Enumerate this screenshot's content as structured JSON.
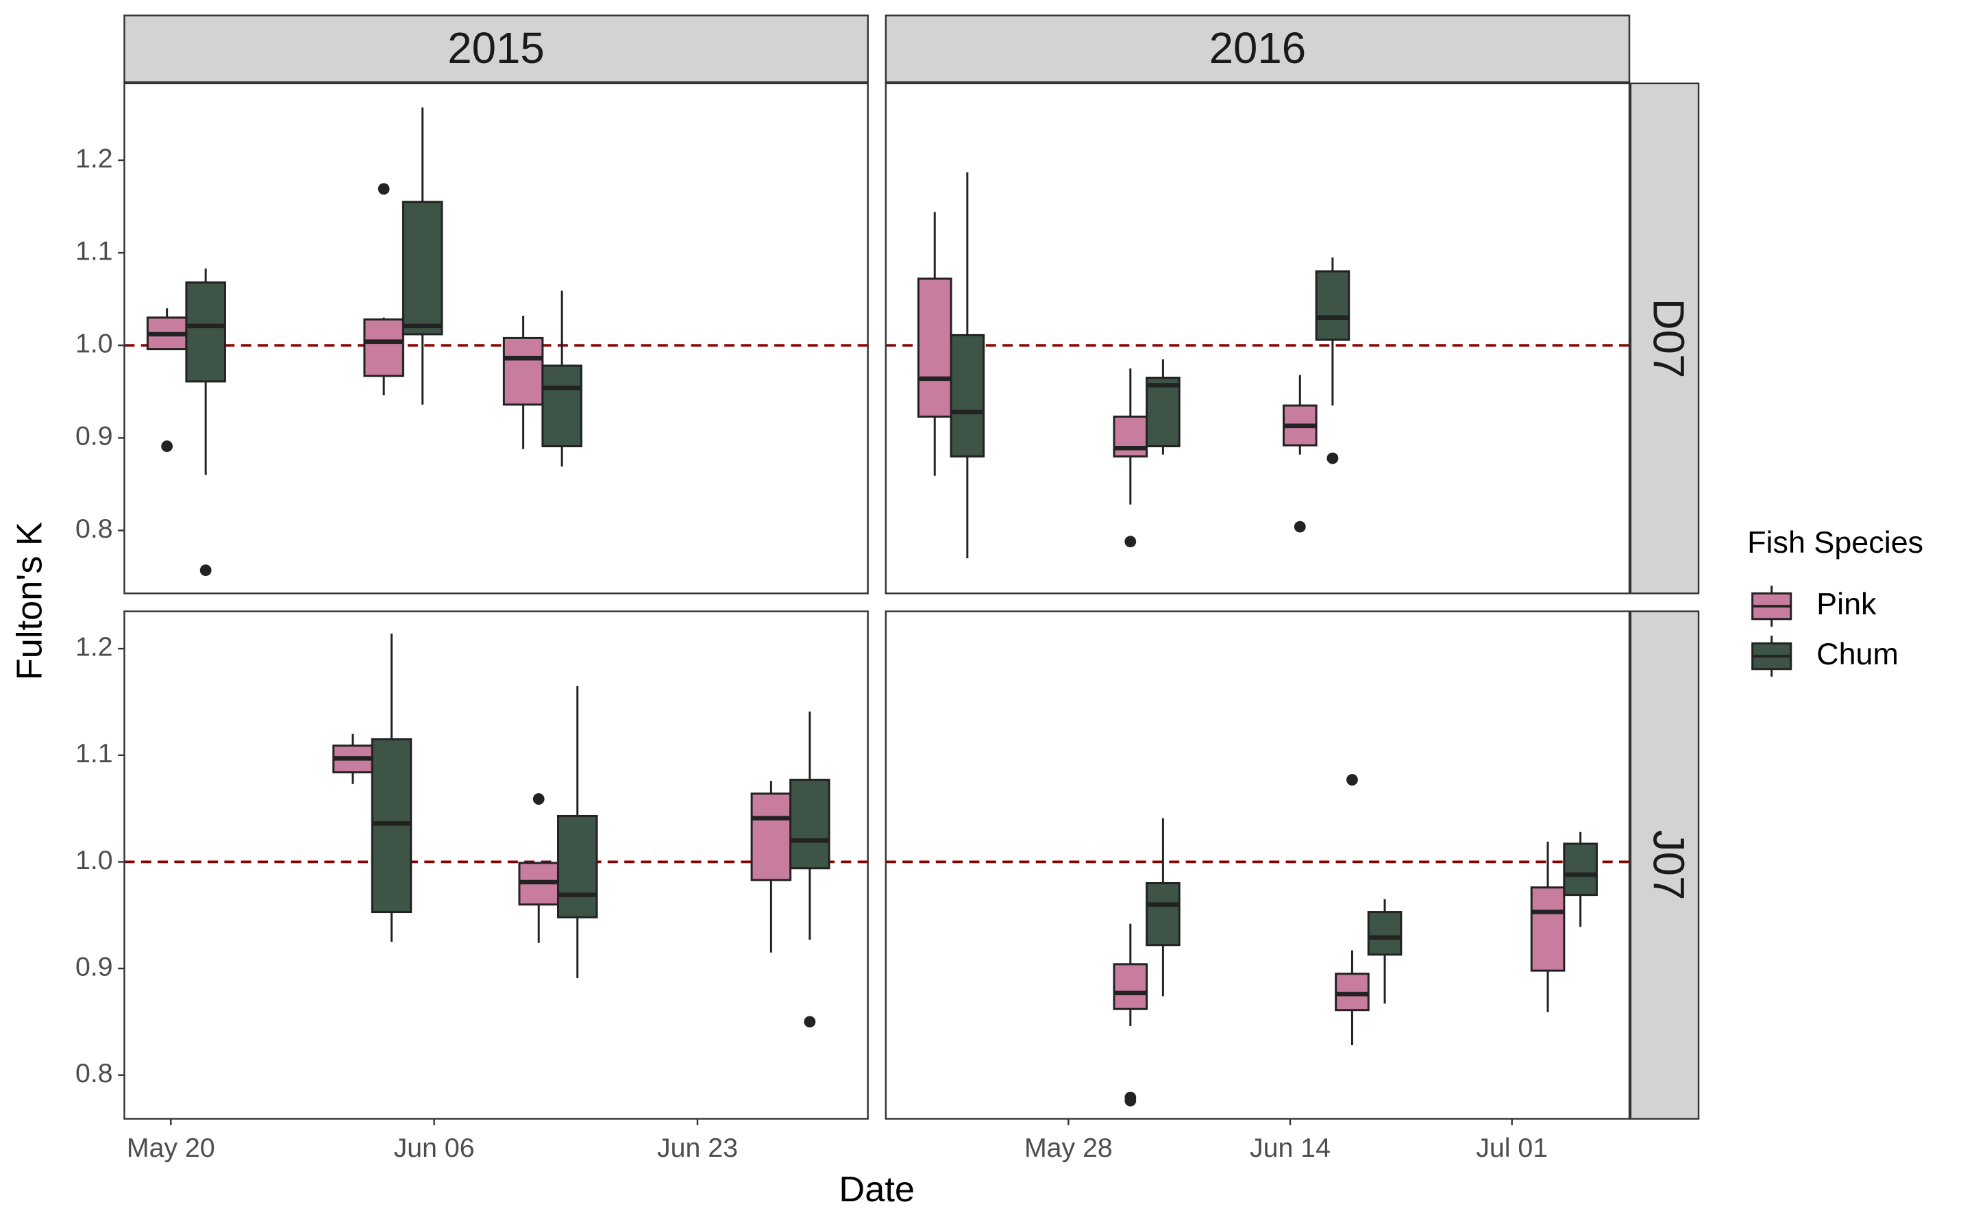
{
  "chart_data": {
    "type": "box",
    "x_label": "Date",
    "y_label": "Fulton's K",
    "legend_title": "Fish Species",
    "legend": "right",
    "grid": false,
    "reference_line": {
      "value": 1,
      "color": "#8b0000"
    },
    "series": [
      {
        "name": "Pink",
        "color": "#c97d9e"
      },
      {
        "name": "Chum",
        "color": "#3d5446"
      }
    ],
    "columns": [
      {
        "label": "2015",
        "xlim": [
          "May 17",
          "Jul 04"
        ],
        "xticks": [
          "May 20",
          "Jun 06",
          "Jun 23"
        ]
      },
      {
        "label": "2016",
        "xlim": [
          "May 14",
          "Jul 10"
        ],
        "xticks": [
          "May 28",
          "Jun 14",
          "Jul 01"
        ]
      }
    ],
    "rows": [
      {
        "label": "D07",
        "ylim": [
          0.732,
          1.283
        ],
        "yticks": [
          0.8,
          0.9,
          {
            "value": 1,
            "label": "1.0"
          },
          1.1,
          1.2
        ]
      },
      {
        "label": "J07",
        "ylim": [
          0.759,
          1.235
        ],
        "yticks": [
          0.8,
          0.9,
          {
            "value": 1,
            "label": "1.0"
          },
          1.1,
          1.2
        ]
      }
    ],
    "panels": [
      [
        [
          [
            {
              "x": "May 21",
              "low": 0.995,
              "q1": 0.996,
              "median": 1.012,
              "q3": 1.03,
              "high": 1.04,
              "outliers": [
                0.891
              ]
            },
            {
              "x": "Jun 04",
              "low": 0.946,
              "q1": 0.967,
              "median": 1.004,
              "q3": 1.028,
              "high": 1.03,
              "outliers": [
                1.169
              ]
            },
            {
              "x": "Jun 13",
              "low": 0.888,
              "q1": 0.936,
              "median": 0.986,
              "q3": 1.008,
              "high": 1.032
            }
          ],
          [
            {
              "x": "May 21",
              "low": 0.86,
              "q1": 0.961,
              "median": 1.021,
              "q3": 1.068,
              "high": 1.083,
              "outliers": [
                0.757
              ]
            },
            {
              "x": "Jun 04",
              "low": 0.936,
              "q1": 1.012,
              "median": 1.021,
              "q3": 1.155,
              "high": 1.257
            },
            {
              "x": "Jun 13",
              "low": 0.869,
              "q1": 0.891,
              "median": 0.954,
              "q3": 0.978,
              "high": 1.059
            }
          ]
        ],
        [
          [
            {
              "x": "May 19",
              "low": 0.859,
              "q1": 0.923,
              "median": 0.964,
              "q3": 1.072,
              "high": 1.144
            },
            {
              "x": "Jun 03",
              "low": 0.828,
              "q1": 0.88,
              "median": 0.889,
              "q3": 0.923,
              "high": 0.975,
              "outliers": [
                0.788
              ]
            },
            {
              "x": "Jun 16",
              "low": 0.882,
              "q1": 0.892,
              "median": 0.913,
              "q3": 0.935,
              "high": 0.968,
              "outliers": [
                0.804
              ]
            }
          ],
          [
            {
              "x": "May 19",
              "low": 0.77,
              "q1": 0.88,
              "median": 0.928,
              "q3": 1.011,
              "high": 1.187
            },
            {
              "x": "Jun 03",
              "low": 0.882,
              "q1": 0.891,
              "median": 0.957,
              "q3": 0.965,
              "high": 0.985
            },
            {
              "x": "Jun 16",
              "low": 0.935,
              "q1": 1.006,
              "median": 1.03,
              "q3": 1.08,
              "high": 1.095,
              "outliers": [
                0.878
              ]
            }
          ]
        ]
      ],
      [
        [
          [
            {
              "x": "Jun 02",
              "low": 1.073,
              "q1": 1.084,
              "median": 1.097,
              "q3": 1.109,
              "high": 1.12
            },
            {
              "x": "Jun 14",
              "low": 0.924,
              "q1": 0.96,
              "median": 0.981,
              "q3": 0.999,
              "high": 0.999,
              "outliers": [
                1.059
              ]
            },
            {
              "x": "Jun 29",
              "low": 0.915,
              "q1": 0.983,
              "median": 1.041,
              "q3": 1.064,
              "high": 1.076
            }
          ],
          [
            {
              "x": "Jun 02",
              "low": 0.925,
              "q1": 0.953,
              "median": 1.036,
              "q3": 1.115,
              "high": 1.214
            },
            {
              "x": "Jun 14",
              "low": 0.891,
              "q1": 0.948,
              "median": 0.969,
              "q3": 1.043,
              "high": 1.165
            },
            {
              "x": "Jun 29",
              "low": 0.927,
              "q1": 0.994,
              "median": 1.02,
              "q3": 1.077,
              "high": 1.141,
              "outliers": [
                0.85
              ]
            }
          ]
        ],
        [
          [
            {
              "x": "Jun 03",
              "low": 0.846,
              "q1": 0.862,
              "median": 0.877,
              "q3": 0.904,
              "high": 0.942,
              "outliers": [
                0.779,
                0.776
              ]
            },
            {
              "x": "Jun 20",
              "low": 0.828,
              "q1": 0.861,
              "median": 0.876,
              "q3": 0.895,
              "high": 0.917,
              "outliers": [
                1.077
              ]
            },
            {
              "x": "Jul 05",
              "low": 0.859,
              "q1": 0.898,
              "median": 0.953,
              "q3": 0.976,
              "high": 1.019
            }
          ],
          [
            {
              "x": "Jun 03",
              "low": 0.874,
              "q1": 0.922,
              "median": 0.96,
              "q3": 0.98,
              "high": 1.041
            },
            {
              "x": "Jun 20",
              "low": 0.867,
              "q1": 0.913,
              "median": 0.929,
              "q3": 0.953,
              "high": 0.965
            },
            {
              "x": "Jul 05",
              "low": 0.939,
              "q1": 0.969,
              "median": 0.988,
              "q3": 1.017,
              "high": 1.028
            }
          ]
        ]
      ]
    ]
  }
}
